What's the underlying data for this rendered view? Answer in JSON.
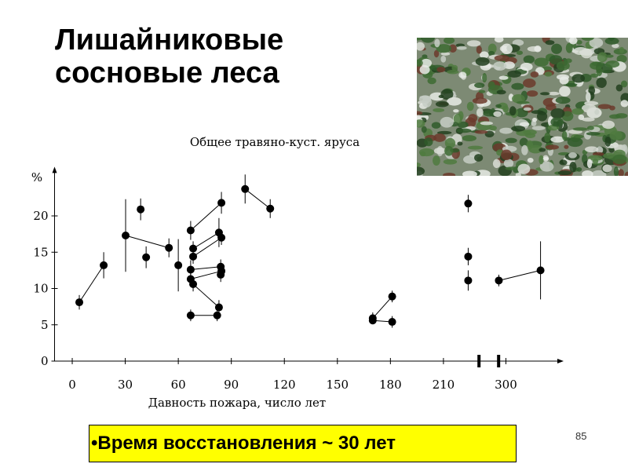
{
  "slide": {
    "title_lines": [
      "Лишайниковые",
      "сосновые леса"
    ],
    "bullet": "•Время восстановления ~ 30 лет",
    "page_number": "85"
  },
  "chart_data": {
    "type": "scatter",
    "title": "Общее травяно-куст. яруса",
    "x_label": "Давность пожара, число лет",
    "y_label": "%",
    "xlim": [
      -10,
      330
    ],
    "ylim": [
      0,
      24.5
    ],
    "x_break": [
      231,
      295
    ],
    "xticks": [
      0,
      30,
      60,
      90,
      120,
      150,
      180,
      210,
      300
    ],
    "yticks": [
      0,
      5,
      10,
      15,
      20
    ],
    "color": "#000000",
    "series": [
      {
        "x": [
          4,
          17.8
        ],
        "values": [
          8.1,
          13.2
        ],
        "errors": [
          1,
          1.8
        ]
      },
      {
        "x": [
          30.2,
          54.7
        ],
        "values": [
          17.3,
          15.6
        ],
        "errors": [
          5,
          1.3
        ]
      },
      {
        "x": [
          38.7
        ],
        "values": [
          20.9
        ],
        "errors": [
          1.5
        ]
      },
      {
        "x": [
          41.8
        ],
        "values": [
          14.3
        ],
        "errors": [
          1.5
        ]
      },
      {
        "x": [
          60
        ],
        "values": [
          13.2
        ],
        "errors": [
          3.6
        ]
      },
      {
        "x": [
          67,
          84.4
        ],
        "values": [
          18,
          21.8
        ],
        "errors": [
          1.3,
          1.5
        ]
      },
      {
        "x": [
          68.4,
          83
        ],
        "values": [
          15.5,
          17.7
        ],
        "errors": [
          1,
          2
        ]
      },
      {
        "x": [
          68.4,
          84.4
        ],
        "values": [
          14.4,
          17
        ],
        "errors": [
          1,
          1
        ]
      },
      {
        "x": [
          67,
          84
        ],
        "values": [
          12.6,
          13
        ],
        "errors": [
          1.3,
          1
        ]
      },
      {
        "x": [
          67,
          84.4
        ],
        "values": [
          11.3,
          12.4
        ],
        "errors": [
          1,
          1
        ]
      },
      {
        "x": [
          68.4,
          83
        ],
        "values": [
          10.6,
          7.4
        ],
        "errors": [
          1,
          1
        ]
      },
      {
        "x": [
          67,
          82
        ],
        "values": [
          6.3,
          6.3
        ],
        "errors": [
          0.8,
          0.8
        ]
      },
      {
        "x": [
          84
        ],
        "values": [
          11.9
        ],
        "errors": [
          1
        ]
      },
      {
        "x": [
          97.8,
          112
        ],
        "values": [
          23.7,
          21
        ],
        "errors": [
          2,
          1.3
        ]
      },
      {
        "x": [
          170,
          181
        ],
        "values": [
          5.9,
          8.9
        ],
        "errors": [
          0.8,
          0.8
        ]
      },
      {
        "x": [
          170,
          181
        ],
        "values": [
          5.6,
          5.4
        ],
        "errors": [
          0.5,
          0.8
        ]
      },
      {
        "x": [
          224
        ],
        "values": [
          21.7
        ],
        "errors": [
          1.2
        ]
      },
      {
        "x": [
          224
        ],
        "values": [
          14.4
        ],
        "errors": [
          1.2
        ]
      },
      {
        "x": [
          224
        ],
        "values": [
          11.1
        ],
        "errors": [
          1.4
        ]
      },
      {
        "x": [
          296,
          319.6
        ],
        "values": [
          11.1,
          12.5
        ],
        "errors": [
          0.8,
          4
        ]
      }
    ]
  }
}
